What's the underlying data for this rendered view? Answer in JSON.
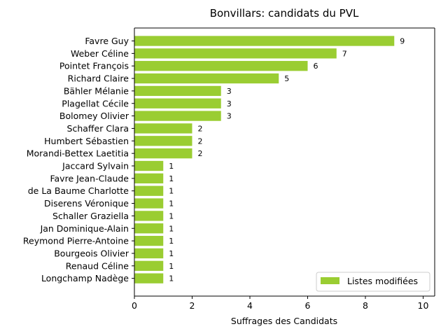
{
  "chart_data": {
    "type": "bar",
    "orientation": "horizontal",
    "title": "Bonvillars: candidats du PVL",
    "xlabel": "Suffrages des Candidats",
    "ylabel": "",
    "xlim": [
      0,
      10.4
    ],
    "xticks": [
      0,
      2,
      4,
      6,
      8,
      10
    ],
    "grid": false,
    "legend_position": "bottom-right",
    "categories": [
      "Favre Guy",
      "Weber Céline",
      "Pointet François",
      "Richard Claire",
      "Bähler Mélanie",
      "Plagellat Cécile",
      "Bolomey Olivier",
      "Schaffer Clara",
      "Humbert Sébastien",
      "Morandi-Bettex Laetitia",
      "Jaccard Sylvain",
      "Favre Jean-Claude",
      "de La Baume Charlotte",
      "Diserens Véronique",
      "Schaller Graziella",
      "Jan Dominique-Alain",
      "Reymond Pierre-Antoine",
      "Bourgeois Olivier",
      "Renaud Céline",
      "Longchamp Nadège"
    ],
    "series": [
      {
        "name": "Listes modifiées",
        "color": "#9acd32",
        "values": [
          9,
          7,
          6,
          5,
          3,
          3,
          3,
          2,
          2,
          2,
          1,
          1,
          1,
          1,
          1,
          1,
          1,
          1,
          1,
          1
        ]
      }
    ]
  }
}
